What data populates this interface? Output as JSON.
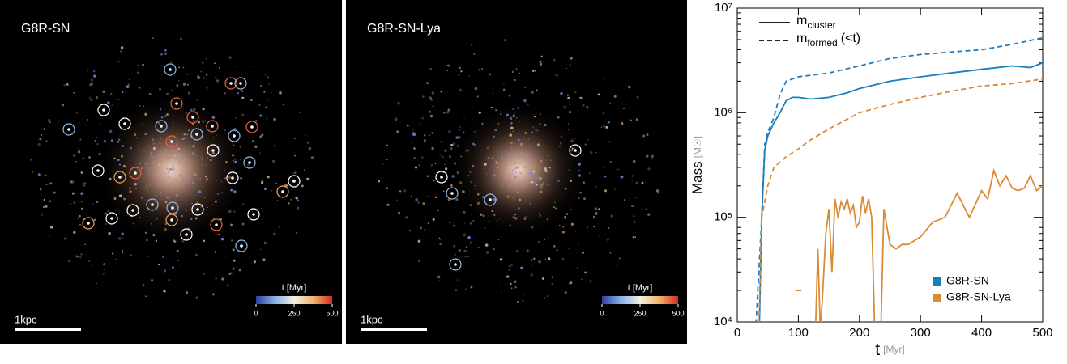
{
  "panels": [
    {
      "label": "G8R-SN",
      "scale_label": "1kpc",
      "colorbar": {
        "title": "t [Myr]",
        "lim": [
          0,
          500
        ],
        "ticks": [
          0,
          250,
          500
        ]
      }
    },
    {
      "label": "G8R-SN-Lya",
      "scale_label": "1kpc",
      "colorbar": {
        "title": "t [Myr]",
        "lim": [
          0,
          500
        ],
        "ticks": [
          0,
          250,
          500
        ]
      }
    }
  ],
  "chart_data": {
    "type": "line",
    "ylabel": "Mass",
    "yunit": "[M☉]",
    "xlabel": "t",
    "xunit": "[Myr]",
    "xlim": [
      0,
      500
    ],
    "xticks": [
      0,
      100,
      200,
      300,
      400,
      500
    ],
    "ylim": [
      10000,
      10000000
    ],
    "log_y": true,
    "yticks": [
      {
        "value": 10000,
        "label": "10⁴"
      },
      {
        "value": 100000,
        "label": "10⁵"
      },
      {
        "value": 1000000,
        "label": "10⁶"
      },
      {
        "value": 10000000,
        "label": "10⁷"
      }
    ],
    "line_styles": [
      {
        "symbol": "m",
        "sub": "cluster",
        "dashed": false
      },
      {
        "symbol": "m",
        "sub": "formed",
        "suffix": "(<t)",
        "dashed": true
      }
    ],
    "runs": [
      {
        "name": "G8R-SN",
        "color": "#1a7dc0"
      },
      {
        "name": "G8R-SN-Lya",
        "color": "#dc8a35"
      }
    ],
    "legend": "lower right",
    "series": [
      {
        "run": 0,
        "style": 0,
        "x": [
          36,
          40,
          45,
          50,
          60,
          70,
          80,
          90,
          100,
          120,
          150,
          180,
          200,
          250,
          300,
          350,
          400,
          450,
          480,
          500
        ],
        "values": [
          8000,
          100000,
          440000,
          600000,
          800000,
          1000000,
          1300000,
          1400000,
          1400000,
          1350000,
          1400000,
          1550000,
          1700000,
          2000000,
          2200000,
          2400000,
          2600000,
          2800000,
          2700000,
          3000000
        ]
      },
      {
        "run": 0,
        "style": 1,
        "x": [
          30,
          40,
          45,
          50,
          60,
          70,
          80,
          100,
          150,
          200,
          250,
          300,
          350,
          400,
          450,
          500
        ],
        "values": [
          8000,
          100000,
          500000,
          650000,
          900000,
          1500000,
          2000000,
          2200000,
          2400000,
          2800000,
          3300000,
          3600000,
          3800000,
          4000000,
          4500000,
          5200000
        ]
      },
      {
        "run": 1,
        "style": 0,
        "x": [
          95,
          105,
          110,
          128,
          132,
          136,
          140,
          145,
          150,
          155,
          160,
          165,
          170,
          175,
          180,
          185,
          190,
          195,
          200,
          205,
          210,
          215,
          220,
          225,
          232,
          235,
          240,
          250,
          260,
          270,
          280,
          300,
          320,
          340,
          360,
          380,
          400,
          410,
          420,
          430,
          440,
          450,
          460,
          470,
          480,
          490,
          500
        ],
        "values": [
          20000,
          20000,
          null,
          8000,
          50000,
          8000,
          20000,
          70000,
          120000,
          30000,
          150000,
          100000,
          140000,
          120000,
          150000,
          110000,
          130000,
          80000,
          90000,
          160000,
          110000,
          150000,
          100000,
          8000,
          null,
          8000,
          120000,
          55000,
          50000,
          55000,
          55000,
          65000,
          90000,
          100000,
          170000,
          100000,
          180000,
          150000,
          280000,
          200000,
          250000,
          190000,
          180000,
          190000,
          250000,
          180000,
          200000
        ]
      },
      {
        "run": 1,
        "style": 1,
        "x": [
          35,
          40,
          50,
          60,
          80,
          100,
          120,
          150,
          200,
          250,
          300,
          350,
          400,
          450,
          500
        ],
        "values": [
          8000,
          100000,
          200000,
          300000,
          380000,
          450000,
          550000,
          700000,
          1000000,
          1200000,
          1400000,
          1600000,
          1800000,
          1900000,
          2100000
        ]
      }
    ]
  }
}
